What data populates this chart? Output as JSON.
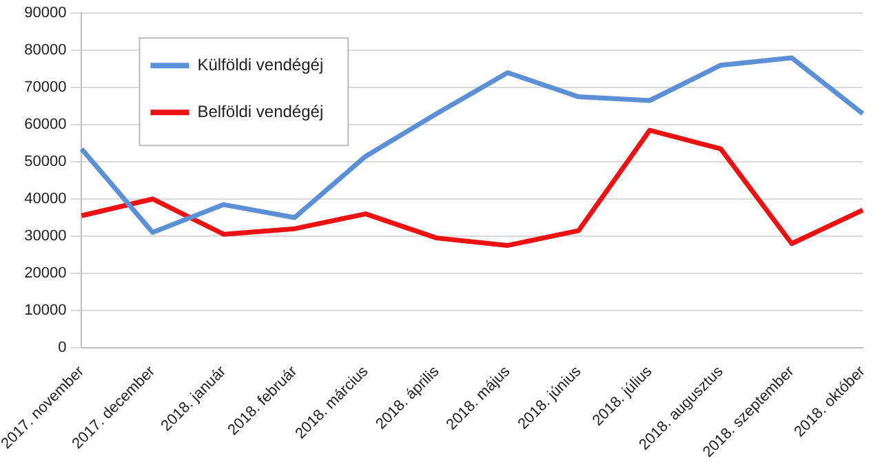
{
  "chart_data": {
    "type": "line",
    "categories": [
      "2017. november",
      "2017. december",
      "2018. január",
      "2018. február",
      "2018. március",
      "2018. április",
      "2018. május",
      "2018. június",
      "2018. július",
      "2018. augusztus",
      "2018. szeptember",
      "2018. október"
    ],
    "series": [
      {
        "name": "Külföldi vendégéj",
        "color": "#5b8fd6",
        "values": [
          53500,
          31000,
          38500,
          35000,
          51500,
          63000,
          74000,
          67500,
          66500,
          76000,
          78000,
          63000
        ]
      },
      {
        "name": "Belföldi vendégéj",
        "color": "#ee1111",
        "values": [
          35500,
          40000,
          30500,
          32000,
          36000,
          29500,
          27500,
          31500,
          58500,
          53500,
          28000,
          37000
        ]
      }
    ],
    "ylim": [
      0,
      90000
    ],
    "yticks": [
      0,
      10000,
      20000,
      30000,
      40000,
      50000,
      60000,
      70000,
      80000,
      90000
    ],
    "grid": "y",
    "legend": "top left",
    "marker": "none",
    "line_style": "solid"
  }
}
